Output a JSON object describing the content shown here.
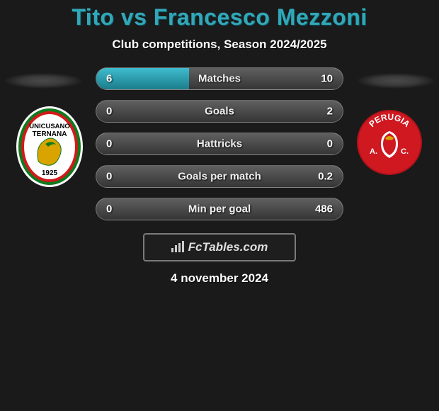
{
  "title": "Tito vs Francesco Mezzoni",
  "subtitle": "Club competitions, Season 2024/2025",
  "branding": "FcTables.com",
  "date": "4 november 2024",
  "colors": {
    "accent": "#33a7b8",
    "bar_grad_top": "#3fbccf",
    "bar_grad_bot": "#1b7d8b",
    "row_grad_top": "#606060",
    "row_grad_bot": "#353535",
    "background": "#1a1a1a"
  },
  "left_team": {
    "name": "Unicusano Ternana",
    "founded": "1925",
    "primary": "#0f7a1e",
    "secondary": "#d11a1a"
  },
  "right_team": {
    "name": "Perugia A.C.",
    "primary": "#cf1820",
    "secondary": "#ffffff"
  },
  "rows": [
    {
      "label": "Matches",
      "left_val": "6",
      "right_val": "10",
      "left_pct": 37.5,
      "right_pct": 0
    },
    {
      "label": "Goals",
      "left_val": "0",
      "right_val": "2",
      "left_pct": 0,
      "right_pct": 0
    },
    {
      "label": "Hattricks",
      "left_val": "0",
      "right_val": "0",
      "left_pct": 0,
      "right_pct": 0
    },
    {
      "label": "Goals per match",
      "left_val": "0",
      "right_val": "0.2",
      "left_pct": 0,
      "right_pct": 0
    },
    {
      "label": "Min per goal",
      "left_val": "0",
      "right_val": "486",
      "left_pct": 0,
      "right_pct": 0
    }
  ]
}
